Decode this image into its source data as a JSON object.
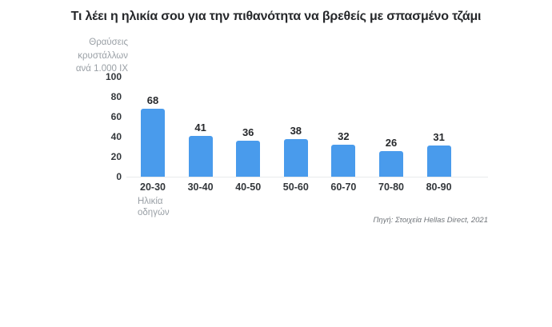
{
  "title": "Τι λέει η ηλικία σου για την πιθανότητα να βρεθείς με σπασμένο τζάμι",
  "y_axis_unit_lines": [
    "Θραύσεις",
    "κρυστάλλων",
    "ανά 1.000 ΙΧ"
  ],
  "x_axis_note_lines": [
    "Ηλικία",
    "οδηγών"
  ],
  "source": "Πηγή: Στοιχεία Hellas Direct, 2021",
  "colors": {
    "bar": "#499BEC",
    "title": "#26282B",
    "tick": "#33373B",
    "muted": "#9AA0A6",
    "baseline": "#E8EAEC",
    "source": "#6F7479"
  },
  "chart_data": {
    "type": "bar",
    "categories": [
      "20-30",
      "30-40",
      "40-50",
      "50-60",
      "60-70",
      "70-80",
      "80-90"
    ],
    "values": [
      68,
      41,
      36,
      38,
      32,
      26,
      31
    ],
    "title": "Τι λέει η ηλικία σου για την πιθανότητα να βρεθείς με σπασμένο τζάμι",
    "xlabel": "Ηλικία οδηγών",
    "ylabel": "Θραύσεις κρυστάλλων ανά 1.000 ΙΧ",
    "ylim": [
      0,
      100
    ],
    "yticks": [
      100,
      80,
      60,
      40,
      20,
      0
    ],
    "grid": false,
    "bar_labels": true,
    "legend": null,
    "source": "Πηγή: Στοιχεία Hellas Direct, 2021"
  }
}
